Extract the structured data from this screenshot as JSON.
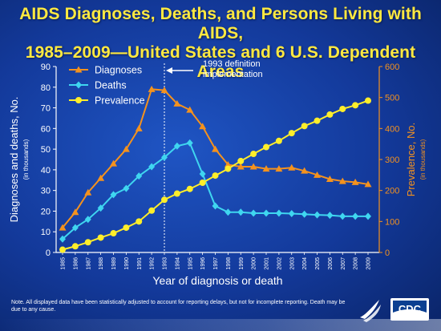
{
  "title": {
    "line1": "AIDS Diagnoses, Deaths, and Persons Living with AIDS,",
    "line2": "1985–2009—United States and 6 U.S. Dependent Areas"
  },
  "note": "Note. All displayed data have been statistically adjusted to account for reporting delays, but not for incomplete reporting. Death may be due to any cause.",
  "logos": {
    "hhs": "hhs-eagle-logo",
    "cdc": "CDC"
  },
  "colors": {
    "diagnoses": "#f4921e",
    "deaths": "#3fd6f0",
    "prevalence": "#ffee2a",
    "right_axis": "#f4921e",
    "title": "#ffe940"
  },
  "chart_data": {
    "type": "line",
    "x": [
      "1985",
      "1986",
      "1987",
      "1988",
      "1989",
      "1990",
      "1991",
      "1992",
      "1993",
      "1994",
      "1995",
      "1996",
      "1997",
      "1998",
      "1999",
      "2000",
      "2001",
      "2002",
      "2003",
      "2004",
      "2005",
      "2006",
      "2007",
      "2008",
      "2009"
    ],
    "xlabel": "Year of diagnosis or death",
    "ylabel_left": "Diagnoses and deaths, No.",
    "ylabel_left_sub": "(in thousands)",
    "ylabel_right": "Prevalence, No.",
    "ylabel_right_sub": "(in thousands)",
    "ylim_left": [
      0,
      90
    ],
    "yticks_left": [
      0,
      10,
      20,
      30,
      40,
      50,
      60,
      70,
      80,
      90
    ],
    "ylim_right": [
      0,
      600
    ],
    "yticks_right": [
      0,
      100,
      200,
      300,
      400,
      500,
      600
    ],
    "grid": false,
    "legend": "top-left",
    "series": [
      {
        "name": "Diagnoses",
        "axis": "left",
        "marker": "triangle",
        "values": [
          12,
          19.5,
          29,
          36,
          43,
          50,
          60,
          79,
          78.5,
          72,
          69,
          61,
          50,
          42.5,
          41.5,
          41.5,
          40.5,
          40.5,
          41,
          39.5,
          37.5,
          35.5,
          34.5,
          34,
          33
        ]
      },
      {
        "name": "Deaths",
        "axis": "left",
        "marker": "diamond",
        "values": [
          6.5,
          12,
          16,
          21.5,
          28,
          31,
          37,
          41.5,
          46,
          51.5,
          53,
          38,
          22.5,
          19.5,
          19.5,
          19,
          19,
          19,
          18.8,
          18.5,
          18.2,
          18,
          17.5,
          17.5,
          17.5
        ]
      },
      {
        "name": "Prevalence",
        "axis": "right",
        "marker": "circle",
        "values": [
          9,
          20,
          33,
          48,
          62,
          80,
          100,
          135,
          170,
          190,
          205,
          225,
          248,
          270,
          295,
          318,
          340,
          360,
          385,
          408,
          425,
          445,
          463,
          475,
          490
        ]
      }
    ],
    "annotation": {
      "text_line1": "1993 definition",
      "text_line2": "implementation",
      "x": "1993"
    }
  }
}
